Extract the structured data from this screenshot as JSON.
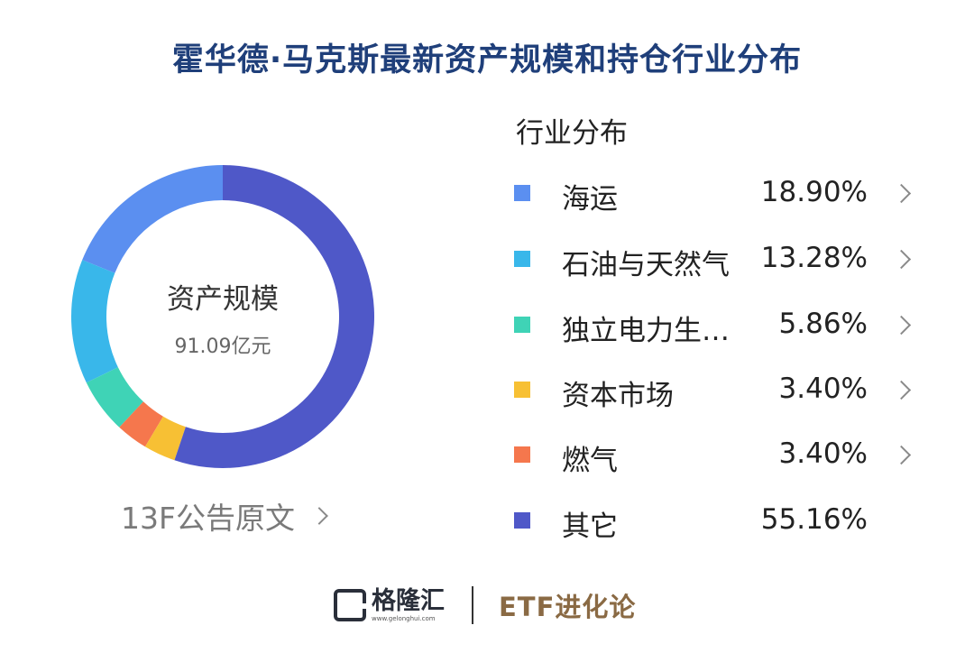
{
  "title": "霍华德·马克斯最新资产规模和持仓行业分布",
  "center": {
    "label": "资产规模",
    "value": "91.09亿元"
  },
  "filing_link": "13F公告原文",
  "legend_title": "行业分布",
  "chart_data": {
    "type": "pie",
    "style": "donut",
    "title": "行业分布",
    "categories": [
      "海运",
      "石油与天然气",
      "独立电力生…",
      "资本市场",
      "燃气",
      "其它"
    ],
    "values": [
      18.9,
      13.28,
      5.86,
      3.4,
      3.4,
      55.16
    ],
    "value_labels": [
      "18.90%",
      "13.28%",
      "5.86%",
      "3.40%",
      "3.40%",
      "55.16%"
    ],
    "colors": [
      "#5b8ff0",
      "#39b7ea",
      "#3fd3b6",
      "#f7c034",
      "#f5774d",
      "#4f58c8"
    ],
    "drill_down": [
      true,
      true,
      true,
      true,
      true,
      false
    ],
    "legend_position": "right"
  },
  "footer": {
    "logo_text": "格隆汇",
    "logo_url": "www.gelonghui.com",
    "brand": "ETF进化论"
  }
}
